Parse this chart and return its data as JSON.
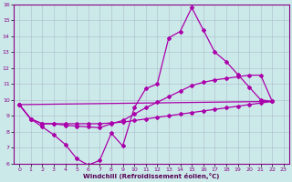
{
  "xlabel": "Windchill (Refroidissement éolien,°C)",
  "xlim": [
    -0.5,
    23.5
  ],
  "ylim": [
    6,
    16
  ],
  "yticks": [
    6,
    7,
    8,
    9,
    10,
    11,
    12,
    13,
    14,
    15,
    16
  ],
  "xticks": [
    0,
    1,
    2,
    3,
    4,
    5,
    6,
    7,
    8,
    9,
    10,
    11,
    12,
    13,
    14,
    15,
    16,
    17,
    18,
    19,
    20,
    21,
    22,
    23
  ],
  "background_color": "#cce9e9",
  "line_color": "#aa00aa",
  "grid_color": "#aabbcc",
  "line1_x": [
    0,
    1,
    2,
    3,
    4,
    5,
    6,
    7,
    8,
    9,
    10,
    11,
    12,
    13,
    14,
    15,
    16,
    17,
    18,
    19,
    20,
    21,
    22
  ],
  "line1_y": [
    9.7,
    8.8,
    8.3,
    7.8,
    7.2,
    6.3,
    5.9,
    6.2,
    7.9,
    7.1,
    9.5,
    10.7,
    11.0,
    13.9,
    14.3,
    15.8,
    14.4,
    13.0,
    12.4,
    11.6,
    10.8,
    10.0,
    9.9
  ],
  "line2_x": [
    0,
    22
  ],
  "line2_y": [
    9.7,
    9.9
  ],
  "line3_x": [
    0,
    1,
    2,
    3,
    4,
    5,
    6,
    7,
    8,
    9,
    10,
    11,
    12,
    13,
    14,
    15,
    16,
    17,
    18,
    19,
    20,
    21,
    22
  ],
  "line3_y": [
    9.7,
    8.8,
    8.5,
    8.5,
    8.4,
    8.35,
    8.3,
    8.25,
    8.5,
    8.7,
    9.1,
    9.5,
    9.85,
    10.2,
    10.55,
    10.9,
    11.1,
    11.25,
    11.35,
    11.45,
    11.55,
    11.55,
    9.9
  ],
  "line4_x": [
    0,
    1,
    2,
    3,
    4,
    5,
    6,
    7,
    8,
    9,
    10,
    11,
    12,
    13,
    14,
    15,
    16,
    17,
    18,
    19,
    20,
    21,
    22
  ],
  "line4_y": [
    9.7,
    8.8,
    8.5,
    8.5,
    8.5,
    8.5,
    8.5,
    8.5,
    8.55,
    8.6,
    8.7,
    8.8,
    8.9,
    9.0,
    9.1,
    9.2,
    9.3,
    9.4,
    9.5,
    9.6,
    9.7,
    9.8,
    9.9
  ]
}
